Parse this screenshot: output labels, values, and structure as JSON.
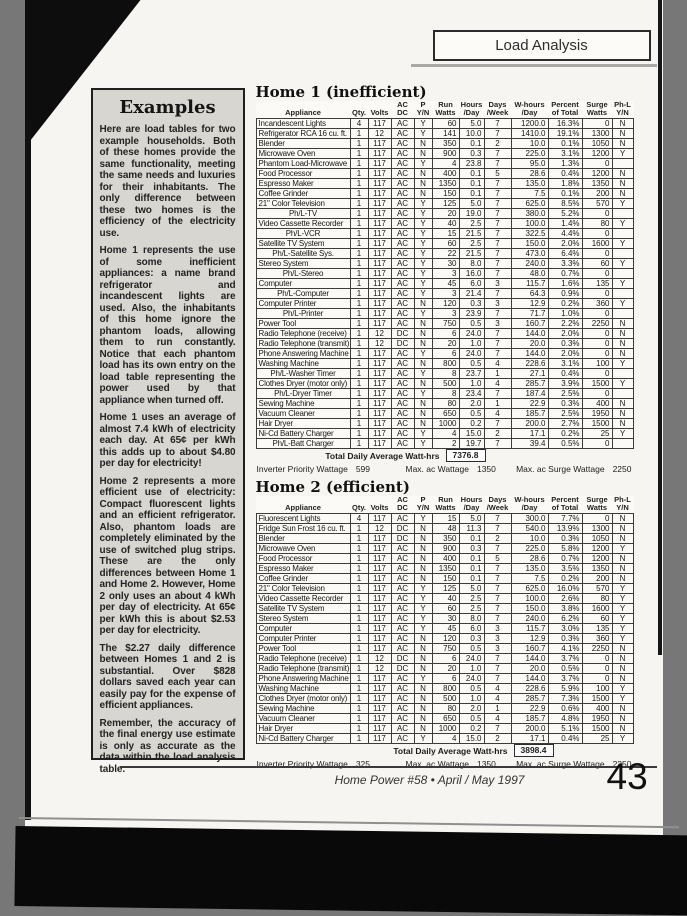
{
  "page": {
    "header_box": "Load Analysis",
    "footer": {
      "journal": "Home Power #58  •  April / May 1997",
      "page_number": "43"
    }
  },
  "sidebar": {
    "title": "Examples",
    "paragraphs": [
      "Here are load tables for two example households. Both of these homes provide the same functionality, meeting the same needs and luxuries for their inhabitants. The only difference between these two homes is the efficiency of the electricity use.",
      "Home 1 represents the use of some inefficient appliances: a name brand refrigerator and incandescent lights are used. Also, the inhabitants of this home ignore the phantom loads, allowing them to run constantly. Notice that each phantom load has its own entry on the load table representing the power used by that appliance when turned off.",
      "Home 1 uses an average of almost 7.4 kWh of electricity each day. At 65¢ per kWh this adds up to about $4.80 per day for electricity!",
      "Home 2 represents a more efficient use of electricity: Compact fluorescent lights and an efficient refrigerator. Also, phantom loads are completely eliminated by the use of switched plug strips. These are the only differences between Home 1 and Home 2. However, Home 2 only uses an about 4 kWh per day of electricity. At 65¢ per kWh this is about $2.53 per day for electricity.",
      "The $2.27 daily difference between Homes 1 and 2 is substantial. Over $828 dollars saved each year can easily pay for the expense of efficient appliances.",
      "Remember, the accuracy of the final energy use estimate is only as accurate as the data within the load analysis table."
    ]
  },
  "tables": {
    "columns": [
      [
        "Appliance",
        ""
      ],
      [
        "Qty.",
        ""
      ],
      [
        "Volts",
        ""
      ],
      [
        "AC",
        "DC"
      ],
      [
        "P",
        "Y/N"
      ],
      [
        "Run",
        "Watts"
      ],
      [
        "Hours",
        "/Day"
      ],
      [
        "Days",
        "/Week"
      ],
      [
        "W-hours",
        "/Day"
      ],
      [
        "Percent",
        "of Total"
      ],
      [
        "Surge",
        "Watts"
      ],
      [
        "Ph-L",
        "Y/N"
      ]
    ],
    "home1": {
      "title": "Home 1 (inefficient)",
      "rows": [
        [
          "Incandescent Lights",
          "4",
          "117",
          "AC",
          "Y",
          "60",
          "5.0",
          "7",
          "1200.0",
          "16.3%",
          "0",
          "N"
        ],
        [
          "Refrigerator RCA 16 cu. ft.",
          "1",
          "12",
          "AC",
          "Y",
          "141",
          "10.0",
          "7",
          "1410.0",
          "19.1%",
          "1300",
          "N"
        ],
        [
          "Blender",
          "1",
          "117",
          "AC",
          "N",
          "350",
          "0.1",
          "2",
          "10.0",
          "0.1%",
          "1050",
          "N"
        ],
        [
          "Microwave Oven",
          "1",
          "117",
          "AC",
          "N",
          "900",
          "0.3",
          "7",
          "225.0",
          "3.1%",
          "1200",
          "Y"
        ],
        [
          "Phantom Load-Microwave",
          "1",
          "117",
          "AC",
          "Y",
          "4",
          "23.8",
          "7",
          "95.0",
          "1.3%",
          "0",
          ""
        ],
        [
          "Food Processor",
          "1",
          "117",
          "AC",
          "N",
          "400",
          "0.1",
          "5",
          "28.6",
          "0.4%",
          "1200",
          "N"
        ],
        [
          "Espresso Maker",
          "1",
          "117",
          "AC",
          "N",
          "1350",
          "0.1",
          "7",
          "135.0",
          "1.8%",
          "1350",
          "N"
        ],
        [
          "Coffee Grinder",
          "1",
          "117",
          "AC",
          "N",
          "150",
          "0.1",
          "7",
          "7.5",
          "0.1%",
          "200",
          "N"
        ],
        [
          "21\" Color Television",
          "1",
          "117",
          "AC",
          "Y",
          "125",
          "5.0",
          "7",
          "625.0",
          "8.5%",
          "570",
          "Y"
        ],
        [
          "Ph/L-TV",
          "1",
          "117",
          "AC",
          "Y",
          "20",
          "19.0",
          "7",
          "380.0",
          "5.2%",
          "0",
          ""
        ],
        [
          "Video Cassette Recorder",
          "1",
          "117",
          "AC",
          "Y",
          "40",
          "2.5",
          "7",
          "100.0",
          "1.4%",
          "80",
          "Y"
        ],
        [
          "Ph/L-VCR",
          "1",
          "117",
          "AC",
          "Y",
          "15",
          "21.5",
          "7",
          "322.5",
          "4.4%",
          "0",
          ""
        ],
        [
          "Satellite TV System",
          "1",
          "117",
          "AC",
          "Y",
          "60",
          "2.5",
          "7",
          "150.0",
          "2.0%",
          "1600",
          "Y"
        ],
        [
          "Ph/L-Satellite Sys.",
          "1",
          "117",
          "AC",
          "Y",
          "22",
          "21.5",
          "7",
          "473.0",
          "6.4%",
          "0",
          ""
        ],
        [
          "Stereo System",
          "1",
          "117",
          "AC",
          "Y",
          "30",
          "8.0",
          "7",
          "240.0",
          "3.3%",
          "60",
          "Y"
        ],
        [
          "Ph/L-Stereo",
          "1",
          "117",
          "AC",
          "Y",
          "3",
          "16.0",
          "7",
          "48.0",
          "0.7%",
          "0",
          ""
        ],
        [
          "Computer",
          "1",
          "117",
          "AC",
          "Y",
          "45",
          "6.0",
          "3",
          "115.7",
          "1.6%",
          "135",
          "Y"
        ],
        [
          "Ph/L-Computer",
          "1",
          "117",
          "AC",
          "Y",
          "3",
          "21.4",
          "7",
          "64.3",
          "0.9%",
          "0",
          ""
        ],
        [
          "Computer Printer",
          "1",
          "117",
          "AC",
          "N",
          "120",
          "0.3",
          "3",
          "12.9",
          "0.2%",
          "360",
          "Y"
        ],
        [
          "Ph/L-Printer",
          "1",
          "117",
          "AC",
          "Y",
          "3",
          "23.9",
          "7",
          "71.7",
          "1.0%",
          "0",
          ""
        ],
        [
          "Power Tool",
          "1",
          "117",
          "AC",
          "N",
          "750",
          "0.5",
          "3",
          "160.7",
          "2.2%",
          "2250",
          "N"
        ],
        [
          "Radio Telephone (receive)",
          "1",
          "12",
          "DC",
          "N",
          "6",
          "24.0",
          "7",
          "144.0",
          "2.0%",
          "0",
          "N"
        ],
        [
          "Radio Telephone (transmit)",
          "1",
          "12",
          "DC",
          "N",
          "20",
          "1.0",
          "7",
          "20.0",
          "0.3%",
          "0",
          "N"
        ],
        [
          "Phone Answering Machine",
          "1",
          "117",
          "AC",
          "Y",
          "6",
          "24.0",
          "7",
          "144.0",
          "2.0%",
          "0",
          "N"
        ],
        [
          "Washing Machine",
          "1",
          "117",
          "AC",
          "N",
          "800",
          "0.5",
          "4",
          "228.6",
          "3.1%",
          "100",
          "Y"
        ],
        [
          "Ph/L-Washer Timer",
          "1",
          "117",
          "AC",
          "Y",
          "8",
          "23.7",
          "1",
          "27.1",
          "0.4%",
          "0",
          ""
        ],
        [
          "Clothes Dryer (motor only)",
          "1",
          "117",
          "AC",
          "N",
          "500",
          "1.0",
          "4",
          "285.7",
          "3.9%",
          "1500",
          "Y"
        ],
        [
          "Ph/L-Dryer Timer",
          "1",
          "117",
          "AC",
          "Y",
          "8",
          "23.4",
          "7",
          "187.4",
          "2.5%",
          "0",
          ""
        ],
        [
          "Sewing Machine",
          "1",
          "117",
          "AC",
          "N",
          "80",
          "2.0",
          "1",
          "22.9",
          "0.3%",
          "400",
          "N"
        ],
        [
          "Vacuum Cleaner",
          "1",
          "117",
          "AC",
          "N",
          "650",
          "0.5",
          "4",
          "185.7",
          "2.5%",
          "1950",
          "N"
        ],
        [
          "Hair Dryer",
          "1",
          "117",
          "AC",
          "N",
          "1000",
          "0.2",
          "7",
          "200.0",
          "2.7%",
          "1500",
          "N"
        ],
        [
          "Ni-Cd Battery Charger",
          "1",
          "117",
          "AC",
          "Y",
          "4",
          "15.0",
          "2",
          "17.1",
          "0.2%",
          "25",
          "Y"
        ],
        [
          "Ph/L-Batt Charger",
          "1",
          "117",
          "AC",
          "Y",
          "2",
          "19.7",
          "7",
          "39.4",
          "0.5%",
          "0",
          ""
        ]
      ],
      "total_label": "Total Daily Average Watt-hrs",
      "total_value": "7376.8",
      "inverter_priority_label": "Inverter Priority Wattage",
      "inverter_priority_value": "599",
      "max_ac_label": "Max. ac Wattage",
      "max_ac_value": "1350",
      "max_surge_label": "Max. ac Surge Wattage",
      "max_surge_value": "2250"
    },
    "home2": {
      "title": "Home 2 (efficient)",
      "rows": [
        [
          "Fluorescent Lights",
          "4",
          "117",
          "AC",
          "Y",
          "15",
          "5.0",
          "7",
          "300.0",
          "7.7%",
          "0",
          "N"
        ],
        [
          "Fridge Sun Frost 16 cu. ft.",
          "1",
          "12",
          "DC",
          "N",
          "48",
          "11.3",
          "7",
          "540.0",
          "13.9%",
          "1300",
          "N"
        ],
        [
          "Blender",
          "1",
          "117",
          "DC",
          "N",
          "350",
          "0.1",
          "2",
          "10.0",
          "0.3%",
          "1050",
          "N"
        ],
        [
          "Microwave Oven",
          "1",
          "117",
          "AC",
          "N",
          "900",
          "0.3",
          "7",
          "225.0",
          "5.8%",
          "1200",
          "Y"
        ],
        [
          "Food Processor",
          "1",
          "117",
          "AC",
          "N",
          "400",
          "0.1",
          "5",
          "28.6",
          "0.7%",
          "1200",
          "N"
        ],
        [
          "Espresso Maker",
          "1",
          "117",
          "AC",
          "N",
          "1350",
          "0.1",
          "7",
          "135.0",
          "3.5%",
          "1350",
          "N"
        ],
        [
          "Coffee Grinder",
          "1",
          "117",
          "AC",
          "N",
          "150",
          "0.1",
          "7",
          "7.5",
          "0.2%",
          "200",
          "N"
        ],
        [
          "21\" Color Television",
          "1",
          "117",
          "AC",
          "Y",
          "125",
          "5.0",
          "7",
          "625.0",
          "16.0%",
          "570",
          "Y"
        ],
        [
          "Video Cassette Recorder",
          "1",
          "117",
          "AC",
          "Y",
          "40",
          "2.5",
          "7",
          "100.0",
          "2.6%",
          "80",
          "Y"
        ],
        [
          "Satellite TV System",
          "1",
          "117",
          "AC",
          "Y",
          "60",
          "2.5",
          "7",
          "150.0",
          "3.8%",
          "1600",
          "Y"
        ],
        [
          "Stereo System",
          "1",
          "117",
          "AC",
          "Y",
          "30",
          "8.0",
          "7",
          "240.0",
          "6.2%",
          "60",
          "Y"
        ],
        [
          "Computer",
          "1",
          "117",
          "AC",
          "Y",
          "45",
          "6.0",
          "3",
          "115.7",
          "3.0%",
          "135",
          "Y"
        ],
        [
          "Computer Printer",
          "1",
          "117",
          "AC",
          "N",
          "120",
          "0.3",
          "3",
          "12.9",
          "0.3%",
          "360",
          "Y"
        ],
        [
          "Power Tool",
          "1",
          "117",
          "AC",
          "N",
          "750",
          "0.5",
          "3",
          "160.7",
          "4.1%",
          "2250",
          "N"
        ],
        [
          "Radio Telephone (receive)",
          "1",
          "12",
          "DC",
          "N",
          "6",
          "24.0",
          "7",
          "144.0",
          "3.7%",
          "0",
          "N"
        ],
        [
          "Radio Telephone (transmit)",
          "1",
          "12",
          "DC",
          "N",
          "20",
          "1.0",
          "7",
          "20.0",
          "0.5%",
          "0",
          "N"
        ],
        [
          "Phone Answering Machine",
          "1",
          "117",
          "AC",
          "Y",
          "6",
          "24.0",
          "7",
          "144.0",
          "3.7%",
          "0",
          "N"
        ],
        [
          "Washing Machine",
          "1",
          "117",
          "AC",
          "N",
          "800",
          "0.5",
          "4",
          "228.6",
          "5.9%",
          "100",
          "Y"
        ],
        [
          "Clothes Dryer (motor only)",
          "1",
          "117",
          "AC",
          "N",
          "500",
          "1.0",
          "4",
          "285.7",
          "7.3%",
          "1500",
          "Y"
        ],
        [
          "Sewing Machine",
          "1",
          "117",
          "AC",
          "N",
          "80",
          "2.0",
          "1",
          "22.9",
          "0.6%",
          "400",
          "N"
        ],
        [
          "Vacuum Cleaner",
          "1",
          "117",
          "AC",
          "N",
          "650",
          "0.5",
          "4",
          "185.7",
          "4.8%",
          "1950",
          "N"
        ],
        [
          "Hair Dryer",
          "1",
          "117",
          "AC",
          "N",
          "1000",
          "0.2",
          "7",
          "200.0",
          "5.1%",
          "1500",
          "N"
        ],
        [
          "Ni-Cd Battery Charger",
          "1",
          "117",
          "AC",
          "Y",
          "4",
          "15.0",
          "2",
          "17.1",
          "0.4%",
          "25",
          "Y"
        ]
      ],
      "total_label": "Total Daily Average Watt-hrs",
      "total_value": "3898.4",
      "inverter_priority_label": "Inverter Priority Wattage",
      "inverter_priority_value": "325",
      "max_ac_label": "Max. ac Wattage",
      "max_ac_value": "1350",
      "max_surge_label": "Max. ac Surge Wattage",
      "max_surge_value": "2250"
    }
  }
}
